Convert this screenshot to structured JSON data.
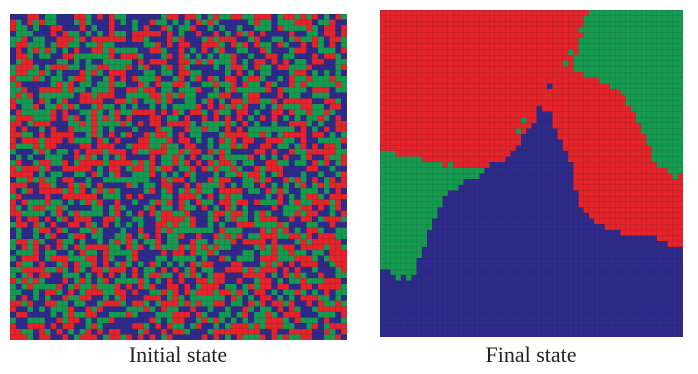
{
  "figure": {
    "panels": [
      {
        "id": "initial",
        "caption": "Initial state",
        "pattern": "random-mixed"
      },
      {
        "id": "final",
        "caption": "Final state",
        "pattern": "clustered-domains"
      }
    ],
    "grid_cells_per_side": 58,
    "colors": {
      "red": "#e4232b",
      "green": "#159b50",
      "blue": "#2e2a8c",
      "cell_line": "#1c1c1c"
    }
  }
}
